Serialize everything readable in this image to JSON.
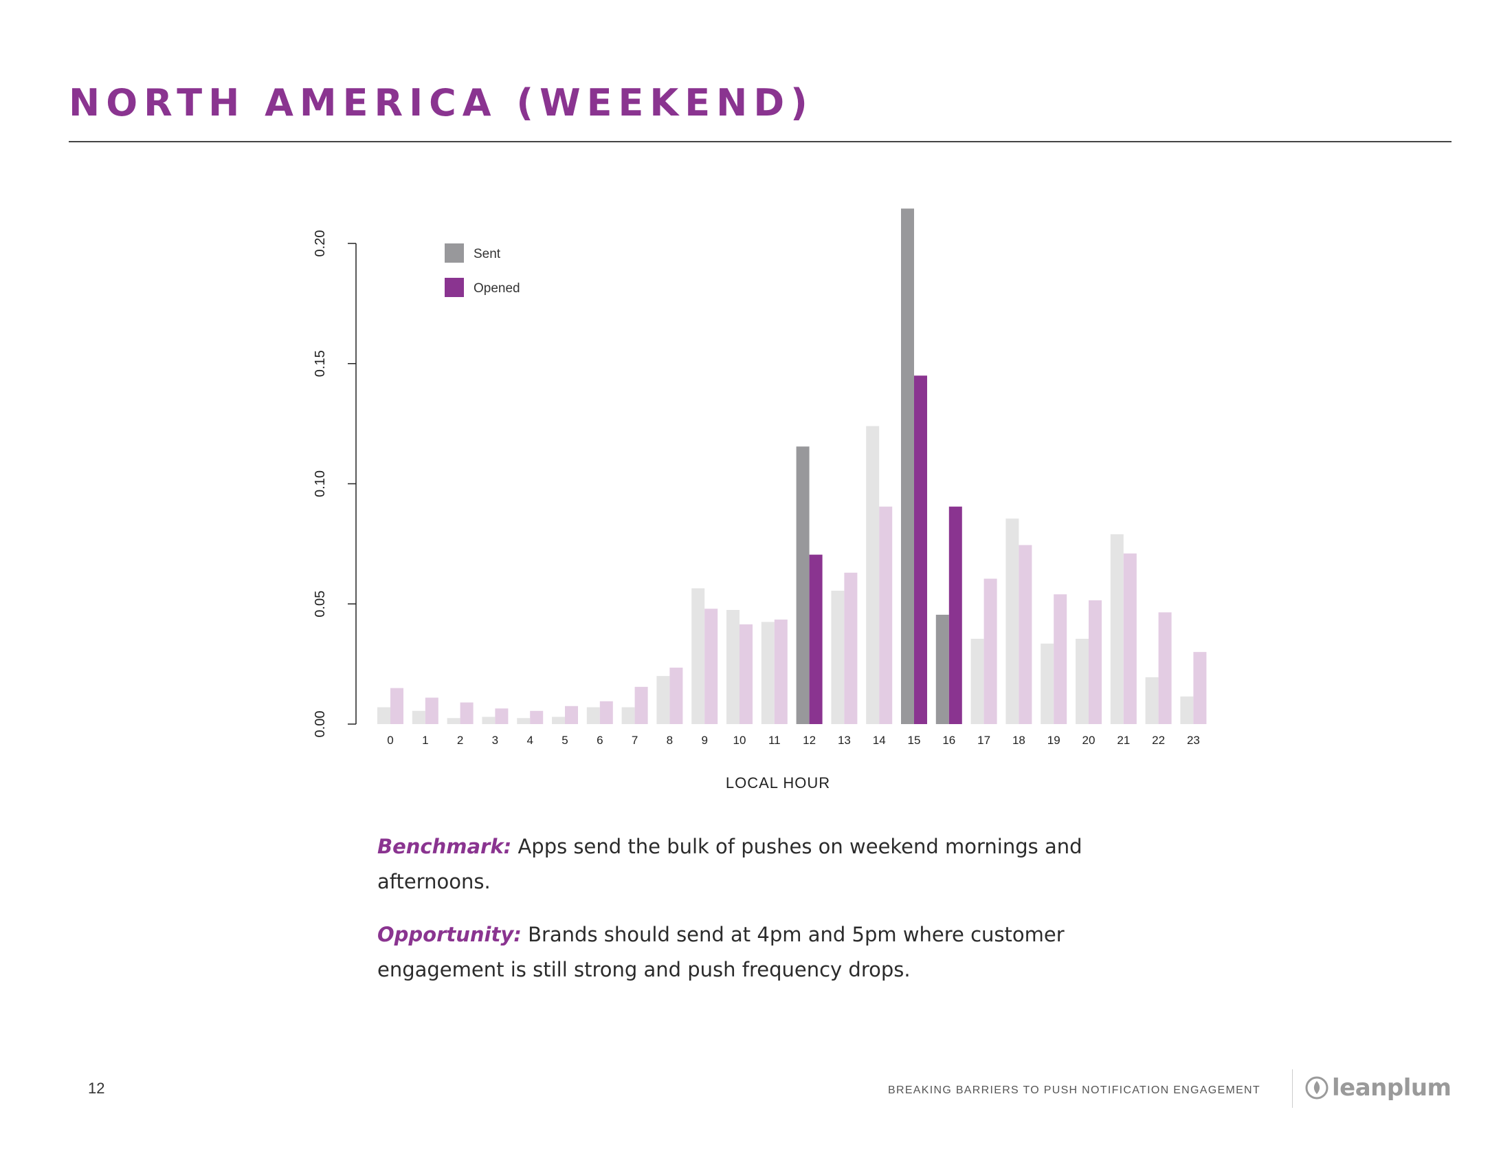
{
  "page": {
    "title": "NORTH AMERICA (WEEKEND)",
    "page_number": "12",
    "footer_text": "BREAKING BARRIERS TO PUSH NOTIFICATION ENGAGEMENT",
    "logo_text": "leanplum"
  },
  "notes": {
    "benchmark_label": "Benchmark:",
    "benchmark_text": " Apps send the bulk of pushes on weekend mornings and afternoons.",
    "opportunity_label": "Opportunity:",
    "opportunity_text": " Brands should send at 4pm and 5pm where customer engagement is still strong and push frequency drops."
  },
  "colors": {
    "brand": "#8a3490",
    "sent_highlight": "#98989b",
    "opened_highlight": "#8a3490",
    "sent_muted": "#e4e4e4",
    "opened_muted": "#e3cce3"
  },
  "chart_data": {
    "type": "bar",
    "title": "",
    "xlabel": "LOCAL HOUR",
    "ylabel": "",
    "ylim": [
      0,
      0.2
    ],
    "yticks": [
      "0.00",
      "0.05",
      "0.10",
      "0.15",
      "0.20"
    ],
    "categories": [
      "0",
      "1",
      "2",
      "3",
      "4",
      "5",
      "6",
      "7",
      "8",
      "9",
      "10",
      "11",
      "12",
      "13",
      "14",
      "15",
      "16",
      "17",
      "18",
      "19",
      "20",
      "21",
      "22",
      "23"
    ],
    "highlighted": [
      "12",
      "15",
      "16"
    ],
    "legend": {
      "position": "top-left",
      "entries": [
        "Sent",
        "Opened"
      ]
    },
    "series": [
      {
        "name": "Sent",
        "values": [
          0.007,
          0.0055,
          0.0025,
          0.003,
          0.0025,
          0.003,
          0.007,
          0.007,
          0.02,
          0.0565,
          0.0475,
          0.0425,
          0.1155,
          0.0555,
          0.124,
          0.2145,
          0.0455,
          0.0355,
          0.0855,
          0.0335,
          0.0355,
          0.079,
          0.0195,
          0.0115
        ]
      },
      {
        "name": "Opened",
        "values": [
          0.015,
          0.011,
          0.009,
          0.0065,
          0.0055,
          0.0075,
          0.0095,
          0.0155,
          0.0235,
          0.048,
          0.0415,
          0.0435,
          0.0705,
          0.063,
          0.0905,
          0.145,
          0.0905,
          0.0605,
          0.0745,
          0.054,
          0.0515,
          0.071,
          0.0465,
          0.03
        ]
      }
    ]
  }
}
